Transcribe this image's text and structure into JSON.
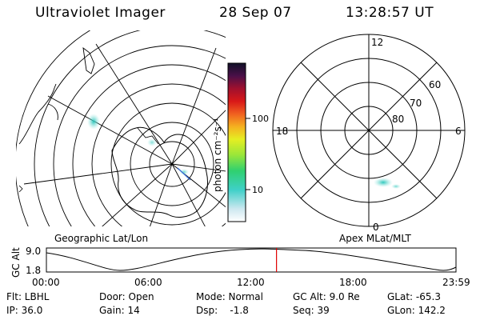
{
  "header": {
    "instrument": "Ultraviolet Imager",
    "date": "28 Sep 07",
    "time": "13:28:57 UT"
  },
  "colorbar": {
    "label": "photon cm⁻²s⁻¹",
    "ticks": [
      "100",
      "10"
    ]
  },
  "left_panel": {
    "caption": "Geographic Lat/Lon"
  },
  "right_panel": {
    "caption": "Apex MLat/MLT",
    "mlt_labels": {
      "top": "12",
      "left": "18",
      "right": "6",
      "bottom": "0"
    },
    "mlat_labels": [
      "60",
      "70",
      "80"
    ]
  },
  "altitude_plot": {
    "ylabel": "GC Alt",
    "yticks": [
      "9.0",
      "1.8"
    ],
    "xticks": [
      "00:00",
      "06:00",
      "12:00",
      "18:00",
      "23:59"
    ],
    "marker_time": "13:28:57"
  },
  "info": {
    "filter": "Flt: LBHL",
    "ip": "IP: 36.0",
    "door": "Door: Open",
    "gain": "Gain: 14",
    "mode": "Mode: Normal",
    "dsp": "Dsp:    -1.8",
    "gc_alt": "GC Alt: 9.0 Re",
    "seq": "Seq: 39",
    "glat": "GLat: -65.3",
    "glon": "GLon: 142.2"
  },
  "colors": {
    "aurora": "#3fd0c8",
    "marker": "#e00000",
    "line": "#000000"
  }
}
